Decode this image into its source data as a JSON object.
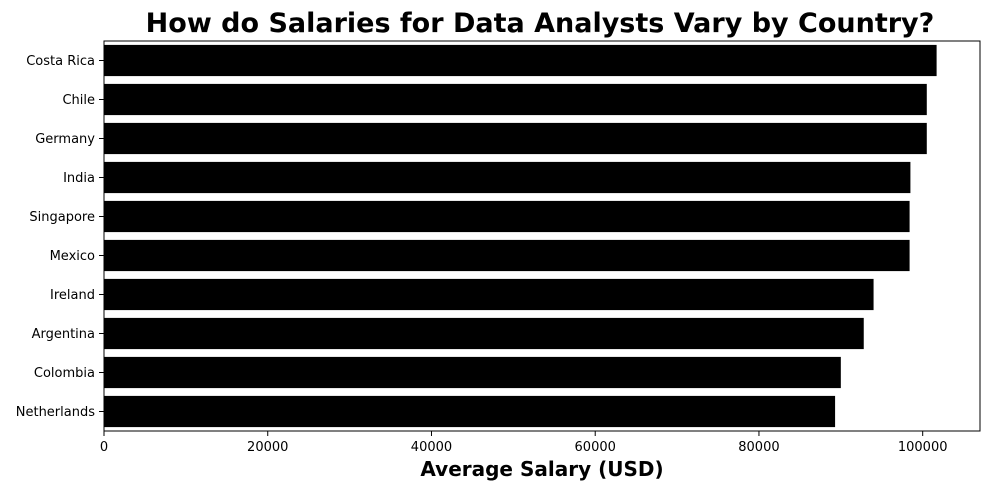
{
  "chart_data": {
    "type": "bar",
    "orientation": "horizontal",
    "title": "How do Salaries for Data Analysts Vary by Country?",
    "xlabel": "Average Salary (USD)",
    "ylabel": "",
    "categories": [
      "Costa Rica",
      "Chile",
      "Germany",
      "India",
      "Singapore",
      "Mexico",
      "Ireland",
      "Argentina",
      "Colombia",
      "Netherlands"
    ],
    "values": [
      101700,
      100500,
      100500,
      98500,
      98400,
      98400,
      94000,
      92800,
      90000,
      89300
    ],
    "xlim": [
      0,
      107000
    ],
    "xticks": [
      0,
      20000,
      40000,
      60000,
      80000,
      100000
    ],
    "xtick_labels": [
      "0",
      "20000",
      "40000",
      "60000",
      "80000",
      "100000"
    ],
    "bar_color": "#000000",
    "grid": false,
    "legend": "none"
  }
}
